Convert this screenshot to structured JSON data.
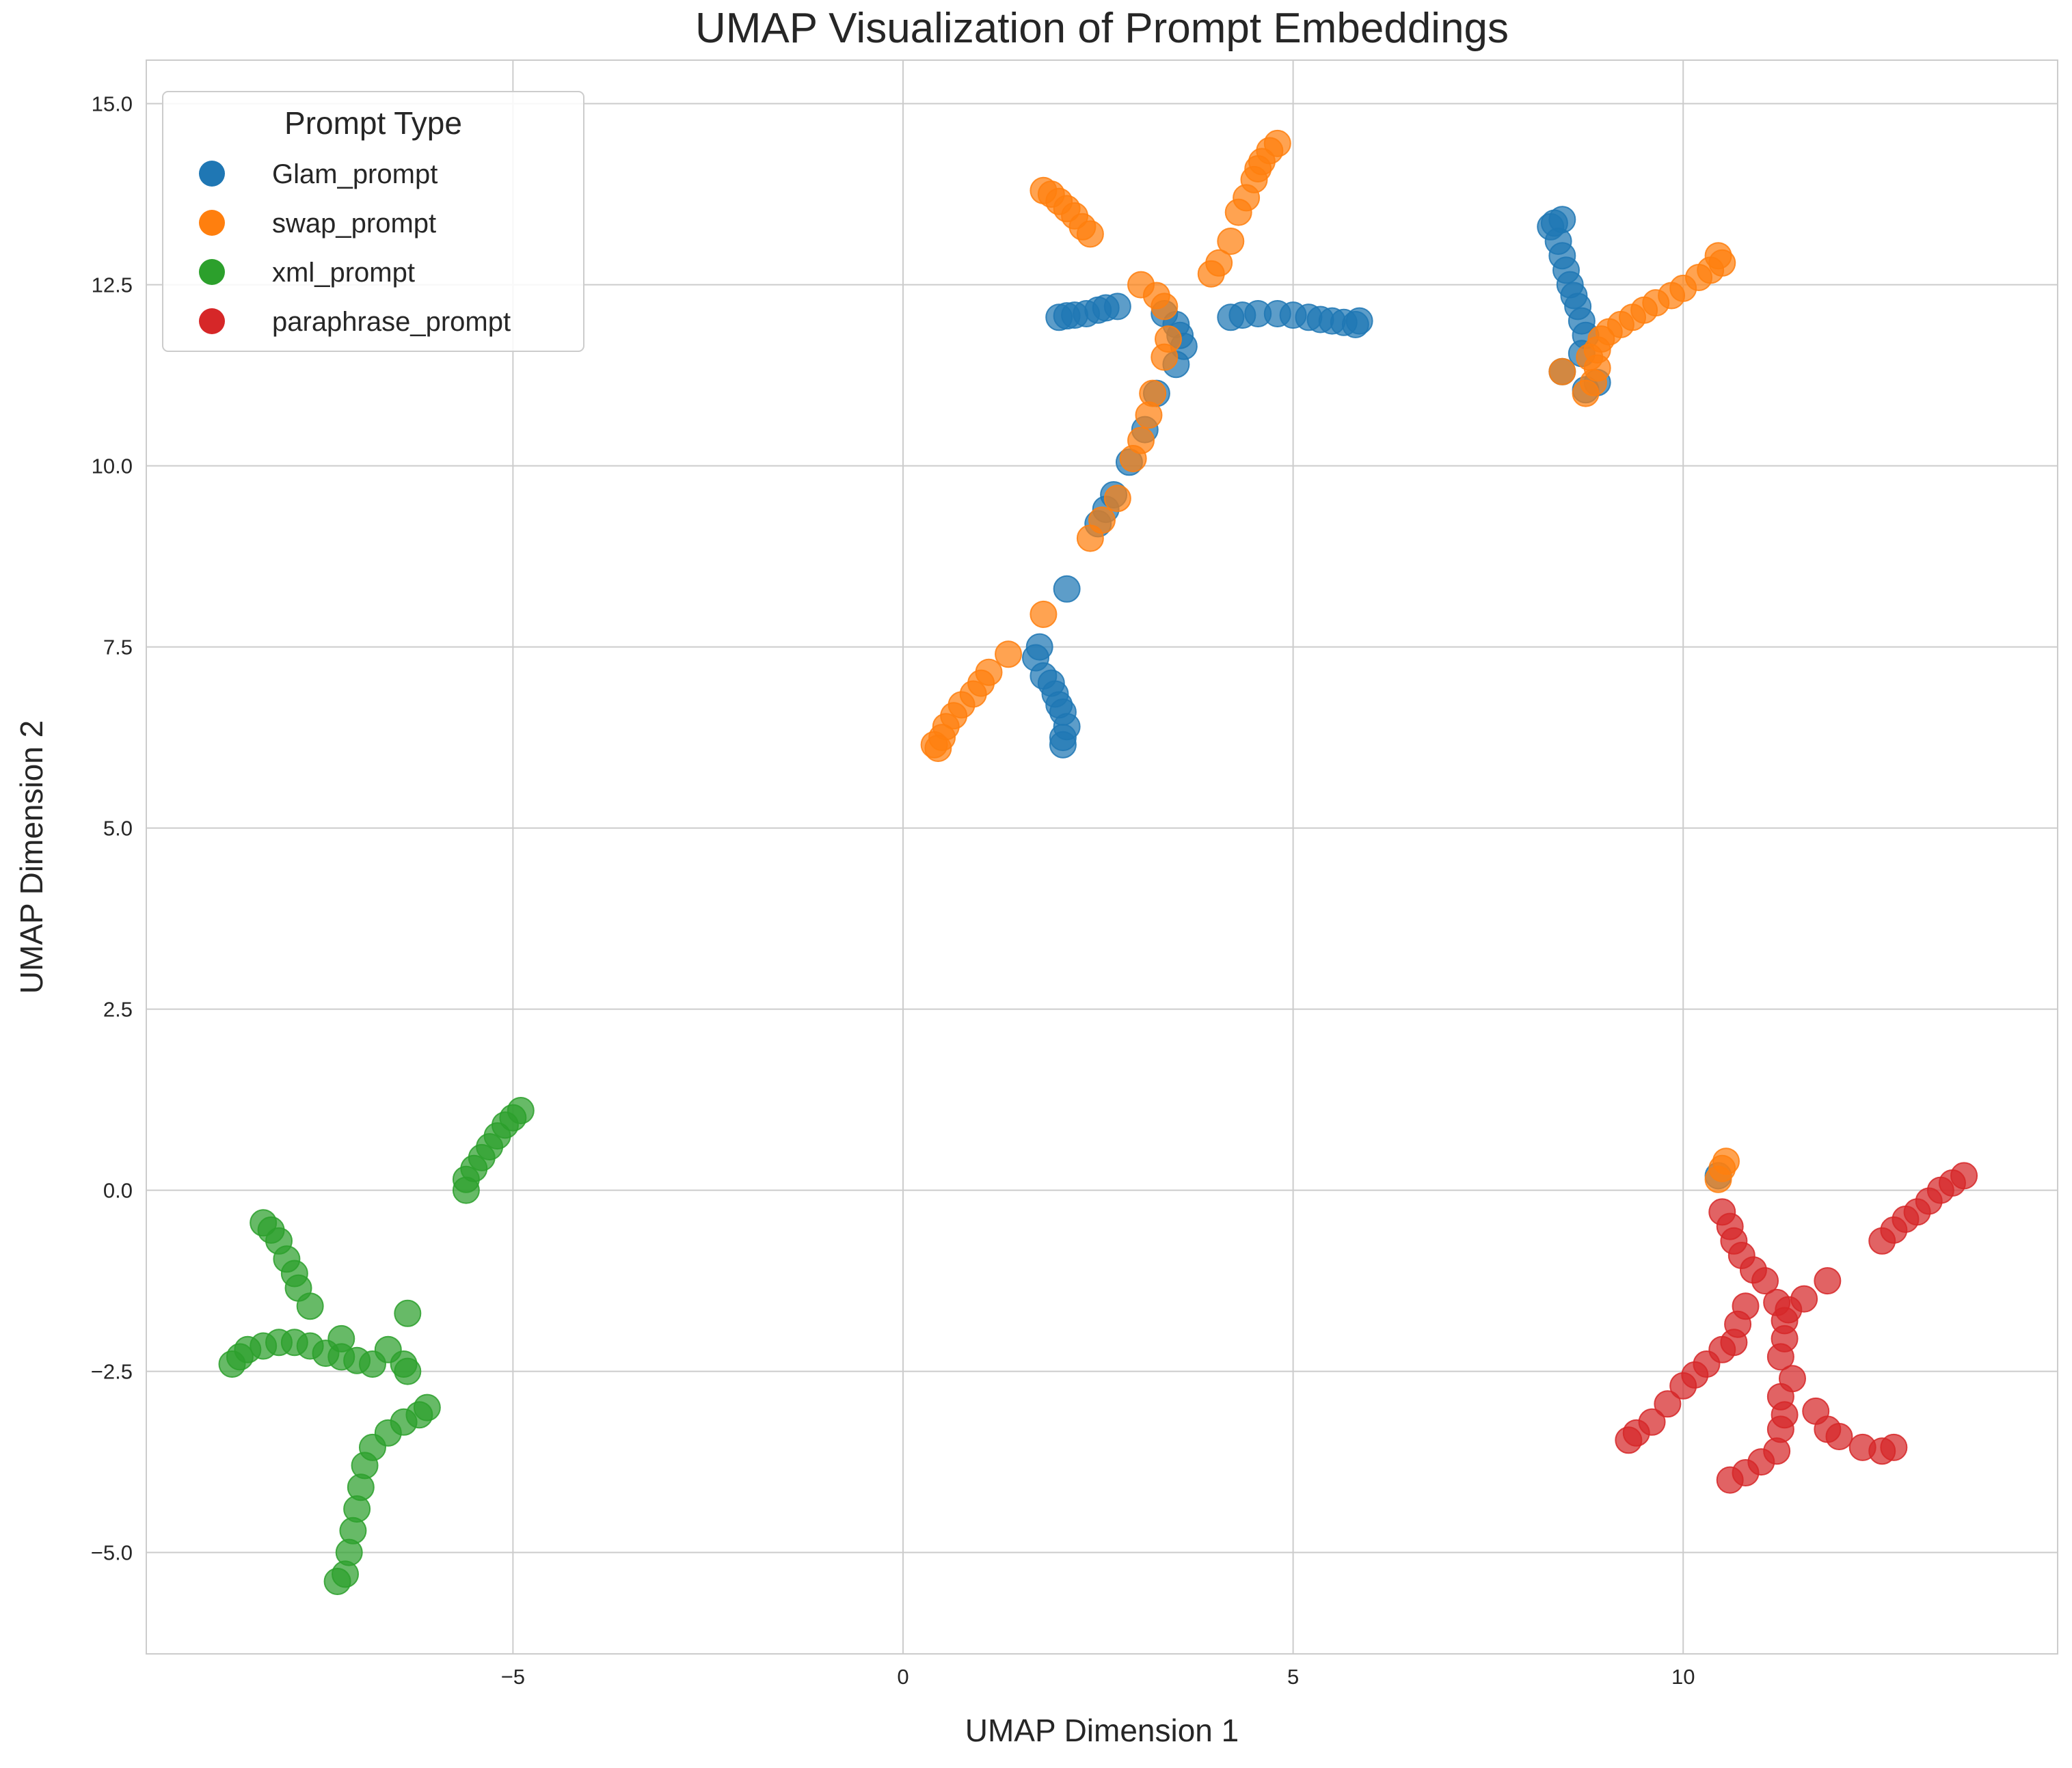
{
  "chart_data": {
    "type": "scatter",
    "title": "UMAP Visualization of Prompt Embeddings",
    "xlabel": "UMAP Dimension 1",
    "ylabel": "UMAP Dimension 2",
    "xlim": [
      -9.7,
      14.8
    ],
    "ylim": [
      -6.4,
      15.6
    ],
    "xticks": [
      -5,
      0,
      5,
      10
    ],
    "xtick_labels": [
      "−5",
      "0",
      "5",
      "10"
    ],
    "yticks": [
      -5.0,
      -2.5,
      0.0,
      2.5,
      5.0,
      7.5,
      10.0,
      12.5,
      15.0
    ],
    "ytick_labels": [
      "−5.0",
      "−2.5",
      "0.0",
      "2.5",
      "5.0",
      "7.5",
      "10.0",
      "12.5",
      "15.0"
    ],
    "grid": true,
    "legend": {
      "title": "Prompt Type",
      "placement": "top-left",
      "entries": [
        "Glam_prompt",
        "swap_prompt",
        "xml_prompt",
        "paraphrase_prompt"
      ]
    },
    "series": [
      {
        "name": "Glam_prompt",
        "color": "#1f77b4",
        "points": [
          [
            2.0,
            12.05
          ],
          [
            2.1,
            12.07
          ],
          [
            2.2,
            12.08
          ],
          [
            2.35,
            12.1
          ],
          [
            2.5,
            12.15
          ],
          [
            2.6,
            12.18
          ],
          [
            2.75,
            12.2
          ],
          [
            3.35,
            12.1
          ],
          [
            3.5,
            11.95
          ],
          [
            3.55,
            11.8
          ],
          [
            3.6,
            11.65
          ],
          [
            3.5,
            11.4
          ],
          [
            4.2,
            12.05
          ],
          [
            4.35,
            12.08
          ],
          [
            4.55,
            12.1
          ],
          [
            4.8,
            12.1
          ],
          [
            5.0,
            12.08
          ],
          [
            5.2,
            12.05
          ],
          [
            5.35,
            12.02
          ],
          [
            5.5,
            12.0
          ],
          [
            5.65,
            11.98
          ],
          [
            5.8,
            11.95
          ],
          [
            5.85,
            12.0
          ],
          [
            3.25,
            11.0
          ],
          [
            3.1,
            10.5
          ],
          [
            2.9,
            10.05
          ],
          [
            2.7,
            9.6
          ],
          [
            2.6,
            9.4
          ],
          [
            2.5,
            9.2
          ],
          [
            2.1,
            8.3
          ],
          [
            1.75,
            7.5
          ],
          [
            1.7,
            7.35
          ],
          [
            1.8,
            7.1
          ],
          [
            1.9,
            7.0
          ],
          [
            1.95,
            6.85
          ],
          [
            2.0,
            6.7
          ],
          [
            2.05,
            6.6
          ],
          [
            2.1,
            6.4
          ],
          [
            2.05,
            6.25
          ],
          [
            2.05,
            6.15
          ],
          [
            8.3,
            13.3
          ],
          [
            8.35,
            13.35
          ],
          [
            8.45,
            13.4
          ],
          [
            8.4,
            13.1
          ],
          [
            8.45,
            12.9
          ],
          [
            8.5,
            12.7
          ],
          [
            8.55,
            12.5
          ],
          [
            8.6,
            12.35
          ],
          [
            8.65,
            12.2
          ],
          [
            8.7,
            12.0
          ],
          [
            8.75,
            11.8
          ],
          [
            8.7,
            11.55
          ],
          [
            8.45,
            11.3
          ],
          [
            8.9,
            11.15
          ],
          [
            8.75,
            11.05
          ],
          [
            10.45,
            0.2
          ]
        ]
      },
      {
        "name": "swap_prompt",
        "color": "#ff7f0e",
        "points": [
          [
            1.8,
            13.8
          ],
          [
            1.9,
            13.75
          ],
          [
            2.0,
            13.65
          ],
          [
            2.1,
            13.55
          ],
          [
            2.2,
            13.45
          ],
          [
            2.3,
            13.3
          ],
          [
            2.4,
            13.2
          ],
          [
            4.8,
            14.45
          ],
          [
            4.7,
            14.35
          ],
          [
            4.6,
            14.2
          ],
          [
            4.55,
            14.1
          ],
          [
            4.5,
            13.95
          ],
          [
            4.4,
            13.7
          ],
          [
            4.3,
            13.5
          ],
          [
            4.2,
            13.1
          ],
          [
            4.05,
            12.8
          ],
          [
            3.95,
            12.65
          ],
          [
            3.05,
            12.5
          ],
          [
            3.25,
            12.35
          ],
          [
            3.35,
            12.2
          ],
          [
            3.4,
            11.75
          ],
          [
            3.35,
            11.5
          ],
          [
            3.2,
            11.0
          ],
          [
            3.15,
            10.7
          ],
          [
            3.05,
            10.35
          ],
          [
            2.95,
            10.1
          ],
          [
            2.75,
            9.55
          ],
          [
            2.55,
            9.25
          ],
          [
            2.4,
            9.0
          ],
          [
            1.8,
            7.95
          ],
          [
            1.35,
            7.4
          ],
          [
            1.1,
            7.15
          ],
          [
            1.0,
            7.0
          ],
          [
            0.9,
            6.85
          ],
          [
            0.75,
            6.7
          ],
          [
            0.65,
            6.55
          ],
          [
            0.55,
            6.4
          ],
          [
            0.5,
            6.25
          ],
          [
            0.4,
            6.15
          ],
          [
            0.45,
            6.1
          ],
          [
            10.45,
            12.9
          ],
          [
            10.5,
            12.8
          ],
          [
            10.35,
            12.7
          ],
          [
            10.2,
            12.6
          ],
          [
            10.0,
            12.45
          ],
          [
            9.85,
            12.35
          ],
          [
            9.65,
            12.25
          ],
          [
            9.5,
            12.15
          ],
          [
            9.35,
            12.05
          ],
          [
            9.2,
            11.95
          ],
          [
            9.05,
            11.85
          ],
          [
            8.95,
            11.75
          ],
          [
            8.9,
            11.6
          ],
          [
            8.8,
            11.5
          ],
          [
            8.9,
            11.35
          ],
          [
            8.85,
            11.15
          ],
          [
            8.75,
            11.0
          ],
          [
            8.45,
            11.3
          ],
          [
            10.5,
            0.3
          ],
          [
            10.55,
            0.4
          ],
          [
            10.45,
            0.15
          ]
        ]
      },
      {
        "name": "xml_prompt",
        "color": "#2ca02c",
        "points": [
          [
            -4.9,
            1.1
          ],
          [
            -5.0,
            1.0
          ],
          [
            -5.1,
            0.9
          ],
          [
            -5.2,
            0.75
          ],
          [
            -5.3,
            0.6
          ],
          [
            -5.4,
            0.45
          ],
          [
            -5.5,
            0.3
          ],
          [
            -5.6,
            0.15
          ],
          [
            -5.6,
            0.0
          ],
          [
            -8.2,
            -0.45
          ],
          [
            -8.1,
            -0.55
          ],
          [
            -8.0,
            -0.7
          ],
          [
            -7.9,
            -0.95
          ],
          [
            -7.8,
            -1.15
          ],
          [
            -7.75,
            -1.35
          ],
          [
            -7.6,
            -1.6
          ],
          [
            -8.6,
            -2.4
          ],
          [
            -8.5,
            -2.3
          ],
          [
            -8.4,
            -2.2
          ],
          [
            -8.2,
            -2.15
          ],
          [
            -8.0,
            -2.1
          ],
          [
            -7.8,
            -2.1
          ],
          [
            -7.6,
            -2.15
          ],
          [
            -7.4,
            -2.25
          ],
          [
            -7.2,
            -2.3
          ],
          [
            -7.0,
            -2.35
          ],
          [
            -6.8,
            -2.4
          ],
          [
            -6.6,
            -2.2
          ],
          [
            -6.4,
            -2.4
          ],
          [
            -6.35,
            -2.5
          ],
          [
            -7.2,
            -2.05
          ],
          [
            -6.35,
            -1.7
          ],
          [
            -6.1,
            -3.0
          ],
          [
            -6.2,
            -3.1
          ],
          [
            -6.4,
            -3.2
          ],
          [
            -6.6,
            -3.35
          ],
          [
            -6.8,
            -3.55
          ],
          [
            -6.9,
            -3.8
          ],
          [
            -6.95,
            -4.1
          ],
          [
            -7.0,
            -4.4
          ],
          [
            -7.05,
            -4.7
          ],
          [
            -7.1,
            -5.0
          ],
          [
            -7.15,
            -5.3
          ],
          [
            -7.25,
            -5.4
          ]
        ]
      },
      {
        "name": "paraphrase_prompt",
        "color": "#d62728",
        "points": [
          [
            13.6,
            0.2
          ],
          [
            13.45,
            0.1
          ],
          [
            13.3,
            0.0
          ],
          [
            13.15,
            -0.15
          ],
          [
            13.0,
            -0.3
          ],
          [
            12.85,
            -0.4
          ],
          [
            12.7,
            -0.55
          ],
          [
            12.55,
            -0.7
          ],
          [
            10.5,
            -0.3
          ],
          [
            10.6,
            -0.5
          ],
          [
            10.65,
            -0.7
          ],
          [
            10.75,
            -0.9
          ],
          [
            10.9,
            -1.1
          ],
          [
            11.05,
            -1.25
          ],
          [
            11.2,
            -1.55
          ],
          [
            11.35,
            -1.65
          ],
          [
            11.55,
            -1.5
          ],
          [
            11.85,
            -1.25
          ],
          [
            10.8,
            -1.6
          ],
          [
            10.7,
            -1.85
          ],
          [
            10.65,
            -2.1
          ],
          [
            10.5,
            -2.2
          ],
          [
            10.3,
            -2.4
          ],
          [
            10.15,
            -2.55
          ],
          [
            10.0,
            -2.7
          ],
          [
            9.8,
            -2.95
          ],
          [
            9.6,
            -3.2
          ],
          [
            9.4,
            -3.35
          ],
          [
            9.3,
            -3.45
          ],
          [
            11.3,
            -1.8
          ],
          [
            11.3,
            -2.05
          ],
          [
            11.25,
            -2.3
          ],
          [
            11.4,
            -2.6
          ],
          [
            11.25,
            -2.85
          ],
          [
            11.3,
            -3.1
          ],
          [
            11.25,
            -3.3
          ],
          [
            11.2,
            -3.6
          ],
          [
            11.0,
            -3.75
          ],
          [
            10.8,
            -3.9
          ],
          [
            10.6,
            -4.0
          ],
          [
            11.7,
            -3.05
          ],
          [
            11.85,
            -3.3
          ],
          [
            12.0,
            -3.4
          ],
          [
            12.3,
            -3.55
          ],
          [
            12.55,
            -3.6
          ],
          [
            12.7,
            -3.55
          ]
        ]
      }
    ]
  }
}
